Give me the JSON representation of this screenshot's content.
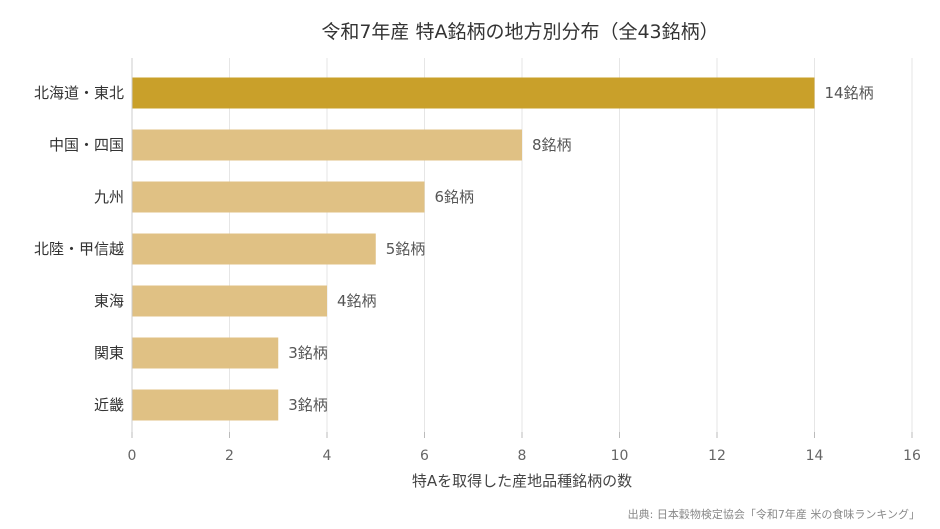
{
  "chart_data": {
    "type": "bar",
    "orientation": "horizontal",
    "title": "令和7年産 特A銘柄の地方別分布（全43銘柄）",
    "categories": [
      "北海道・東北",
      "中国・四国",
      "九州",
      "北陸・甲信越",
      "東海",
      "関東",
      "近畿"
    ],
    "values": [
      14,
      8,
      6,
      5,
      4,
      3,
      3
    ],
    "value_labels": [
      "14銘柄",
      "8銘柄",
      "6銘柄",
      "5銘柄",
      "4銘柄",
      "3銘柄",
      "3銘柄"
    ],
    "xlabel": "特Aを取得した産地品種銘柄の数",
    "ylabel": "",
    "xlim": [
      0,
      16
    ],
    "xticks": [
      0,
      2,
      4,
      6,
      8,
      10,
      12,
      14,
      16
    ],
    "grid": true,
    "highlight_color": "#C9A02A",
    "bar_color": "#E0C184",
    "highlight_index": 0
  },
  "source": "出典: 日本穀物検定協会「令和7年産 米の食味ランキング」"
}
